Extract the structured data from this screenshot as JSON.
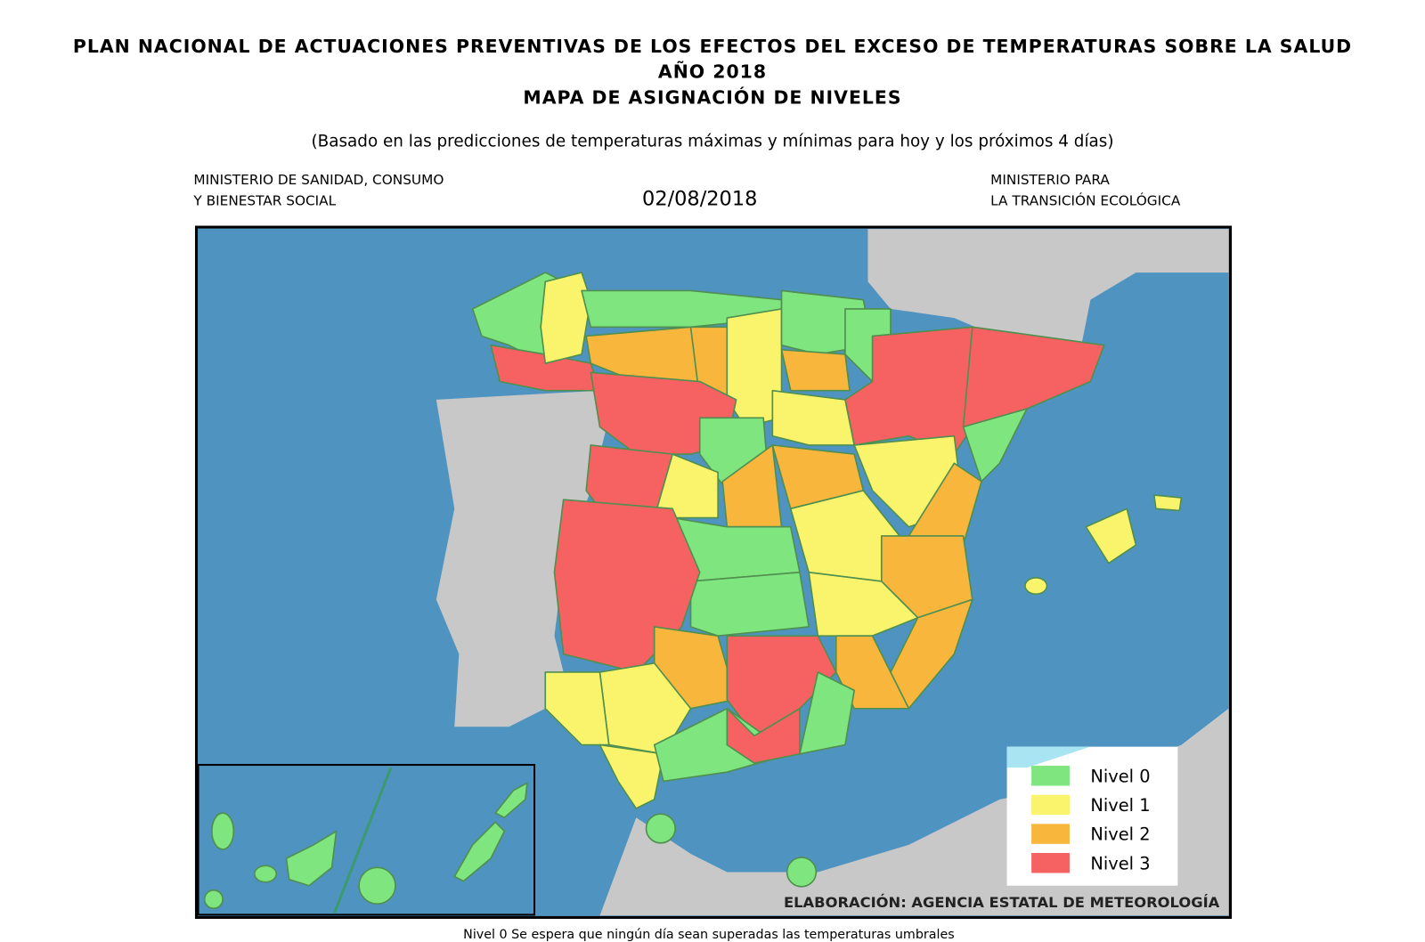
{
  "header": {
    "title": "PLAN NACIONAL DE ACTUACIONES PREVENTIVAS DE LOS EFECTOS DEL EXCESO DE TEMPERATURAS SOBRE LA SALUD",
    "year": "AÑO 2018",
    "subtitle": "MAPA DE ASIGNACIÓN DE NIVELES",
    "note": "(Basado en las predicciones de temperaturas máximas y mínimas para hoy y los próximos 4 días)"
  },
  "ministry_left": [
    "MINISTERIO DE SANIDAD, CONSUMO",
    "Y BIENESTAR SOCIAL"
  ],
  "date": "02/08/2018",
  "ministry_right": [
    "MINISTERIO PARA",
    "LA TRANSICIÓN ECOLÓGICA"
  ],
  "legend": [
    {
      "label": "Nivel 0",
      "color": "#7fe57f"
    },
    {
      "label": "Nivel 1",
      "color": "#f9f46b"
    },
    {
      "label": "Nivel 2",
      "color": "#f8b63c"
    },
    {
      "label": "Nivel 3",
      "color": "#f66262"
    }
  ],
  "credit": "ELABORACIÓN: AGENCIA ESTATAL DE METEOROLOGÍA",
  "footer": "Nivel 0 Se espera que ningún día sean superadas las temperaturas umbrales"
}
